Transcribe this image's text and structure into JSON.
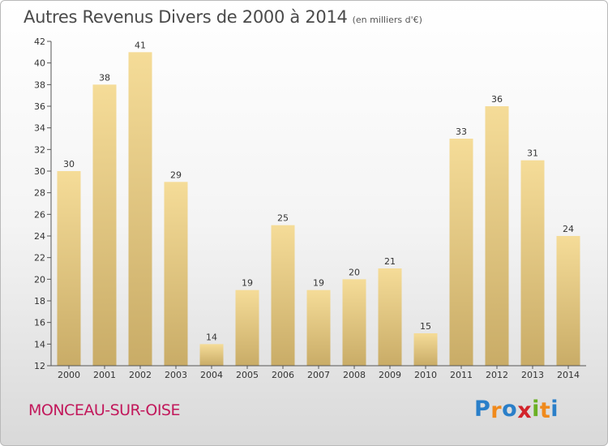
{
  "header": {
    "title": "Autres Revenus Divers de 2000 à 2014",
    "subtitle": "(en milliers d'€)"
  },
  "footer": {
    "commune": "MONCEAU-SUR-OISE",
    "logo_text": "Proxiti"
  },
  "colors": {
    "bar_light": "#f5dc98",
    "bar_dark": "#c9ac67",
    "commune_text": "#c2185b",
    "logo_letters": [
      "#2a7fc9",
      "#f08a1c",
      "#2a7fc9",
      "#d2232a",
      "#6ab023",
      "#f08a1c",
      "#2a7fc9"
    ]
  },
  "chart_data": {
    "type": "bar",
    "title": "Autres Revenus Divers de 2000 à 2014",
    "subtitle": "(en milliers d'€)",
    "xlabel": "",
    "ylabel": "",
    "categories": [
      "2000",
      "2001",
      "2002",
      "2003",
      "2004",
      "2005",
      "2006",
      "2007",
      "2008",
      "2009",
      "2010",
      "2011",
      "2012",
      "2013",
      "2014"
    ],
    "values": [
      30,
      38,
      41,
      29,
      14,
      19,
      25,
      19,
      20,
      21,
      15,
      33,
      36,
      31,
      24
    ],
    "ylim": [
      12,
      42
    ],
    "yticks": [
      12,
      14,
      16,
      18,
      20,
      22,
      24,
      26,
      28,
      30,
      32,
      34,
      36,
      38,
      40,
      42
    ],
    "grid": false,
    "legend": "none"
  }
}
